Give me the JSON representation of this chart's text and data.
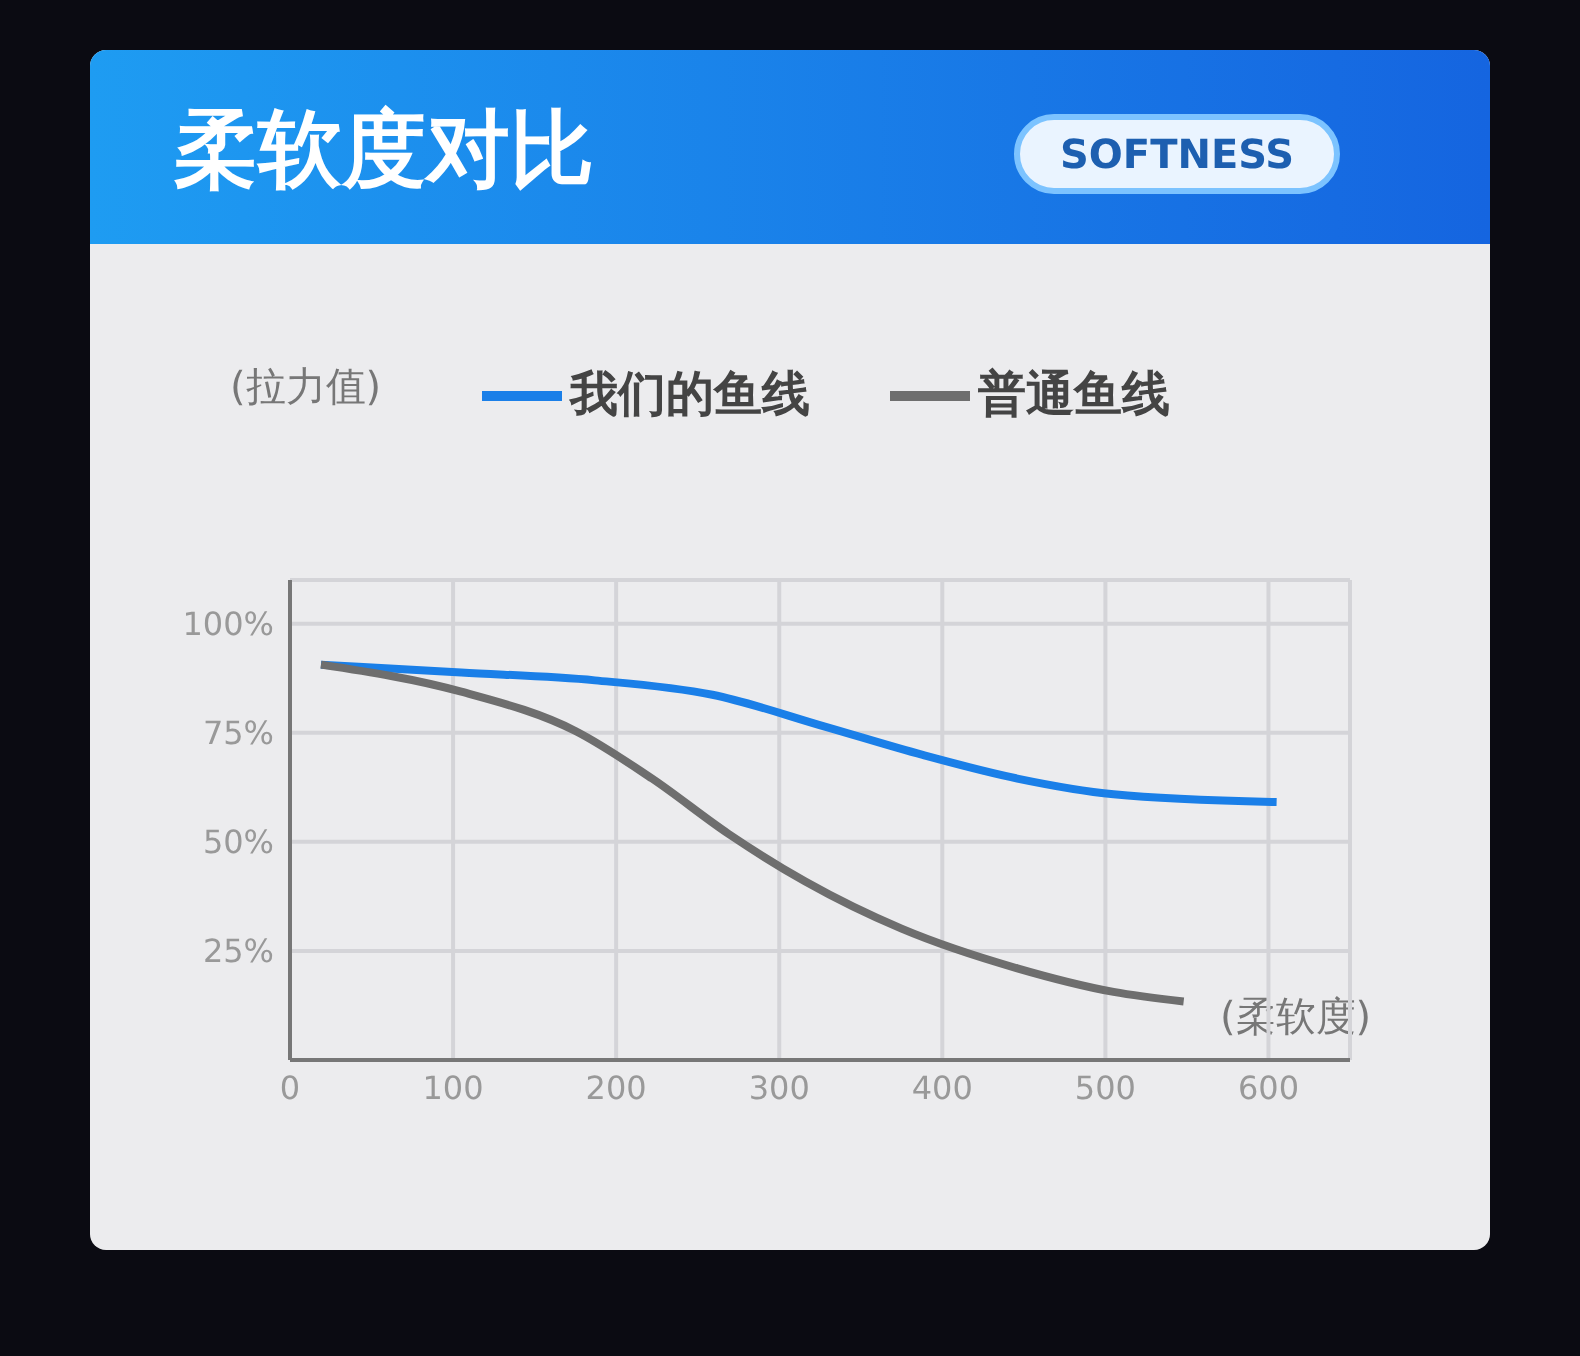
{
  "chart_data": {
    "type": "line",
    "title": "柔软度对比",
    "subtitle": "SOFTNESS",
    "xlabel": "(柔软度)",
    "ylabel": "(拉力值)",
    "xlim": [
      0,
      650
    ],
    "xticks": [
      0,
      100,
      200,
      300,
      400,
      500,
      600
    ],
    "ylim": [
      0,
      110
    ],
    "yticks": [
      {
        "value": 25,
        "label": "25%"
      },
      {
        "value": 50,
        "label": "50%"
      },
      {
        "value": 75,
        "label": "75%"
      },
      {
        "value": 100,
        "label": "100%"
      }
    ],
    "grid": true,
    "legend": "top right",
    "series": [
      {
        "name": "我们的鱼线",
        "color": "#1a7fe8",
        "x": [
          19,
          105,
          187,
          259,
          328,
          388,
          446,
          505,
          605
        ],
        "values": [
          90.6,
          88.8,
          87.0,
          83.7,
          76.4,
          69.9,
          64.5,
          60.9,
          59.1
        ]
      },
      {
        "name": "普通鱼线",
        "color": "#6e6e6e",
        "x": [
          19,
          105,
          175,
          222,
          269,
          316,
          375,
          446,
          505,
          548
        ],
        "values": [
          90.6,
          84.4,
          75.4,
          64.5,
          51.8,
          40.9,
          30.1,
          21.0,
          15.6,
          13.4
        ]
      }
    ]
  }
}
